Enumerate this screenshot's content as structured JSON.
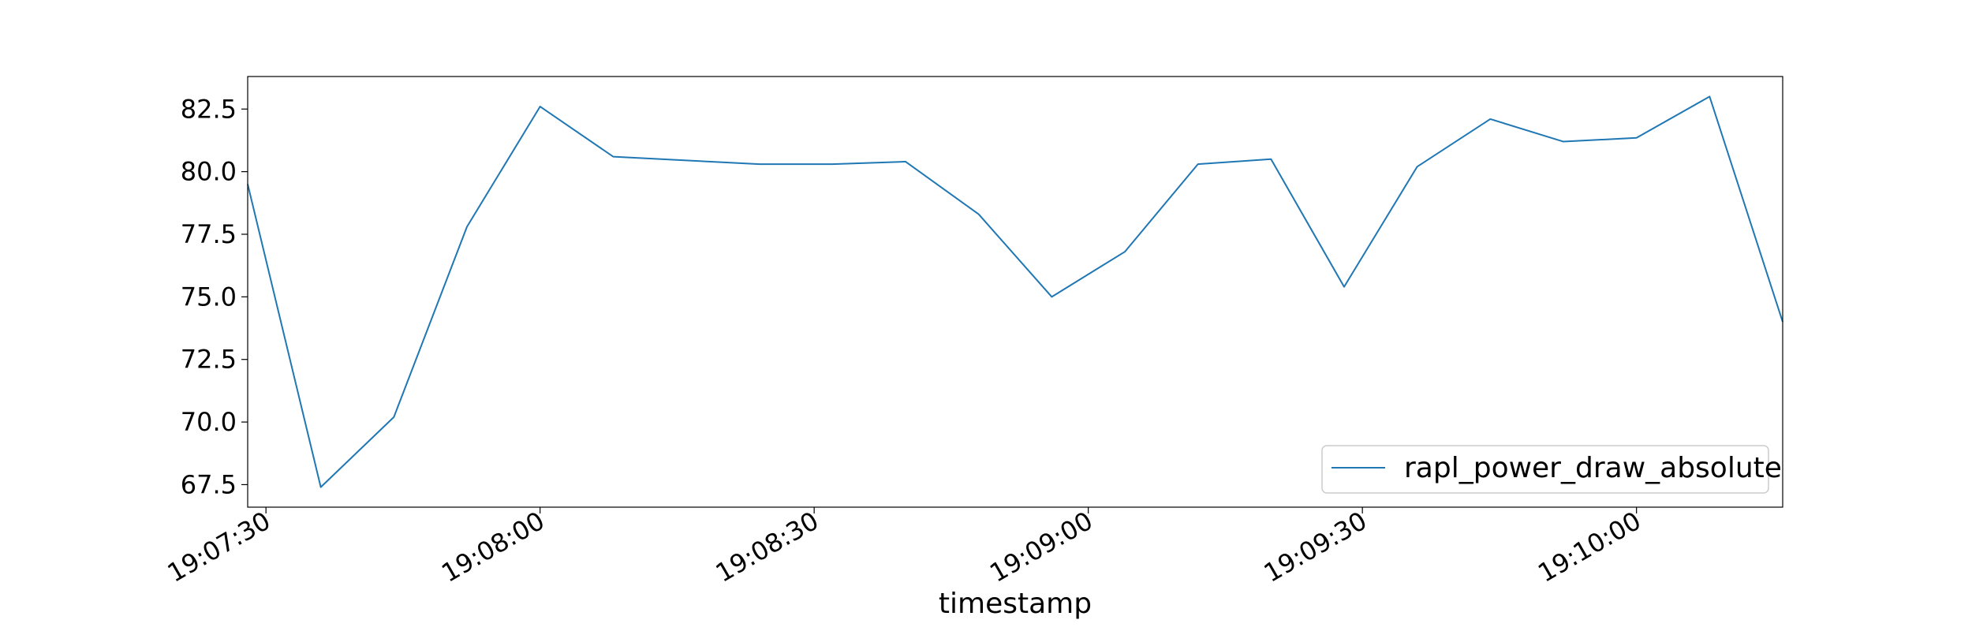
{
  "chart_data": {
    "type": "line",
    "title": "",
    "xlabel": "timestamp",
    "ylabel": "",
    "grid": false,
    "legend_placement": "lower-right",
    "line_color": "#1f77b4",
    "x_tick_labels": [
      "19:07:30",
      "19:08:00",
      "19:08:30",
      "19:09:00",
      "19:09:30",
      "19:10:00"
    ],
    "y_tick_labels": [
      "67.5",
      "70.0",
      "72.5",
      "75.0",
      "77.5",
      "80.0",
      "82.5"
    ],
    "xlim": [
      "19:07:28",
      "19:10:16"
    ],
    "ylim": [
      66.6,
      83.8
    ],
    "series": [
      {
        "name": "rapl_power_draw_absolute",
        "x": [
          "19:07:28",
          "19:07:36",
          "19:07:44",
          "19:07:52",
          "19:08:00",
          "19:08:08",
          "19:08:16",
          "19:08:24",
          "19:08:32",
          "19:08:40",
          "19:08:48",
          "19:08:56",
          "19:09:04",
          "19:09:12",
          "19:09:20",
          "19:09:28",
          "19:09:36",
          "19:09:44",
          "19:09:52",
          "19:10:00",
          "19:10:08",
          "19:10:16"
        ],
        "values": [
          79.5,
          67.4,
          70.2,
          77.8,
          82.6,
          80.6,
          80.45,
          80.3,
          80.3,
          80.4,
          78.3,
          75.0,
          76.8,
          80.3,
          80.5,
          75.4,
          80.2,
          82.1,
          81.2,
          81.35,
          83.0,
          74.0
        ]
      }
    ]
  }
}
